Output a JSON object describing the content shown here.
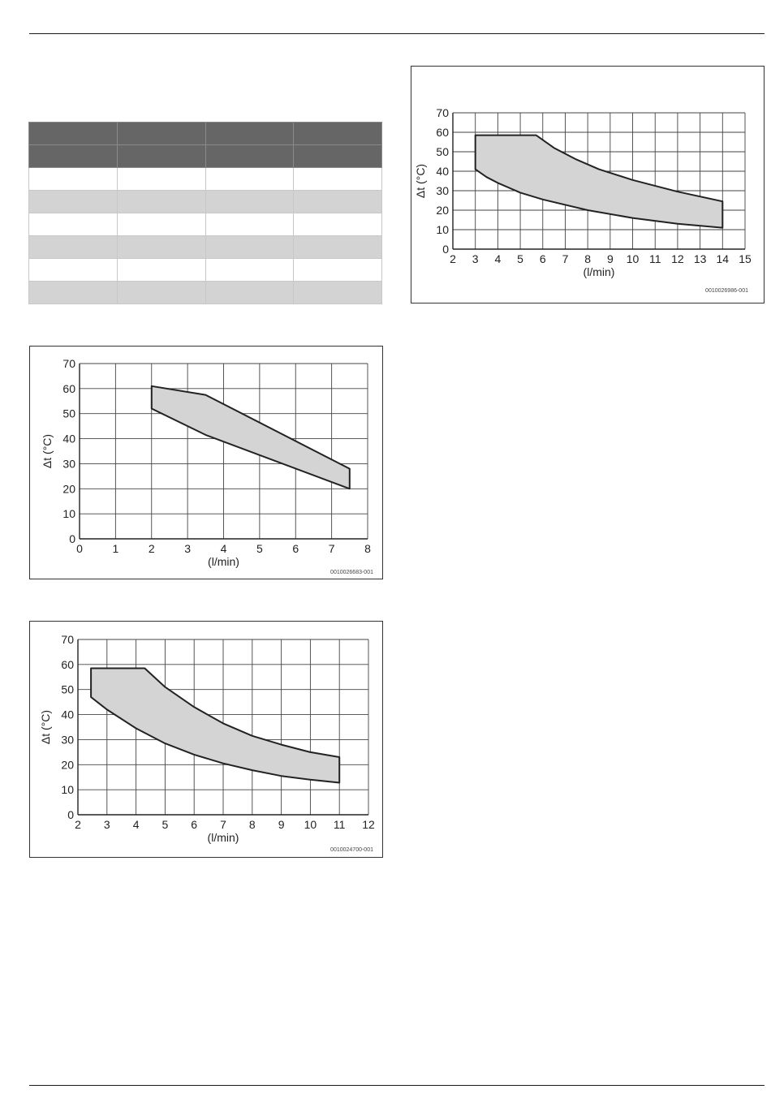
{
  "table": {
    "rows": [
      [
        "",
        "",
        "",
        ""
      ],
      [
        "",
        "",
        "",
        ""
      ],
      [
        "",
        "",
        "",
        ""
      ],
      [
        "",
        "",
        "",
        ""
      ],
      [
        "",
        "",
        "",
        ""
      ],
      [
        "",
        "",
        "",
        ""
      ],
      [
        "",
        "",
        "",
        ""
      ],
      [
        "",
        "",
        "",
        ""
      ]
    ]
  },
  "chart_data": [
    {
      "type": "area",
      "xlabel": "(l/min)",
      "ylabel": "Δt (°C)",
      "xlim": [
        0,
        8
      ],
      "ylim": [
        0,
        70
      ],
      "xticks": [
        "0",
        "1",
        "2",
        "3",
        "4",
        "5",
        "6",
        "7",
        "8"
      ],
      "yticks": [
        "0",
        "10",
        "20",
        "30",
        "40",
        "50",
        "60",
        "70"
      ],
      "grid": true,
      "fill": "#d4d4d4",
      "series": [
        {
          "values": [
            [
              2.0,
              61
            ],
            [
              3.5,
              57.5
            ],
            [
              7.5,
              28
            ],
            [
              7.5,
              20
            ],
            [
              3.5,
              41.5
            ],
            [
              2.0,
              52
            ],
            [
              2.0,
              61
            ]
          ]
        }
      ],
      "code": "0010026683-001"
    },
    {
      "type": "area",
      "xlabel": "(l/min)",
      "ylabel": "Δt (°C)",
      "xlim": [
        2,
        12
      ],
      "ylim": [
        0,
        70
      ],
      "xticks": [
        "2",
        "3",
        "4",
        "5",
        "6",
        "7",
        "8",
        "9",
        "10",
        "11",
        "12"
      ],
      "yticks": [
        "0",
        "10",
        "20",
        "30",
        "40",
        "50",
        "60",
        "70"
      ],
      "grid": true,
      "fill": "#d4d4d4",
      "series": [
        {
          "values": [
            [
              2.45,
              58.5
            ],
            [
              4.3,
              58.5
            ],
            [
              5.0,
              51
            ],
            [
              6.0,
              43
            ],
            [
              7.0,
              36.5
            ],
            [
              8.0,
              31.5
            ],
            [
              9.0,
              28
            ],
            [
              10.0,
              25
            ],
            [
              11.0,
              23
            ],
            [
              11.0,
              12.8
            ],
            [
              10.0,
              14
            ],
            [
              9.0,
              15.5
            ],
            [
              8.0,
              17.8
            ],
            [
              7.0,
              20.5
            ],
            [
              6.0,
              24
            ],
            [
              5.0,
              28.5
            ],
            [
              4.0,
              34.5
            ],
            [
              3.0,
              42
            ],
            [
              2.45,
              47
            ],
            [
              2.45,
              58.5
            ]
          ]
        }
      ],
      "code": "0010024700-001"
    },
    {
      "type": "area",
      "xlabel": "(l/min)",
      "ylabel": "Δt (°C)",
      "xlim": [
        2,
        15
      ],
      "ylim": [
        0,
        70
      ],
      "xticks": [
        "2",
        "3",
        "4",
        "5",
        "6",
        "7",
        "8",
        "9",
        "10",
        "11",
        "12",
        "13",
        "14",
        "15"
      ],
      "yticks": [
        "0",
        "10",
        "20",
        "30",
        "40",
        "50",
        "60",
        "70"
      ],
      "grid": true,
      "fill": "#d4d4d4",
      "series": [
        {
          "values": [
            [
              3.0,
              58.5
            ],
            [
              5.7,
              58.5
            ],
            [
              6.5,
              52
            ],
            [
              7.5,
              46
            ],
            [
              8.5,
              41
            ],
            [
              10.0,
              35.5
            ],
            [
              12.0,
              29.5
            ],
            [
              14.0,
              24.5
            ],
            [
              14.0,
              11
            ],
            [
              12.0,
              13
            ],
            [
              10.0,
              16
            ],
            [
              8.0,
              20
            ],
            [
              6.0,
              25.5
            ],
            [
              5.0,
              29
            ],
            [
              4.0,
              34
            ],
            [
              3.5,
              37
            ],
            [
              3.0,
              41
            ],
            [
              3.0,
              58.5
            ]
          ]
        }
      ],
      "code": "0010026986-001"
    }
  ]
}
